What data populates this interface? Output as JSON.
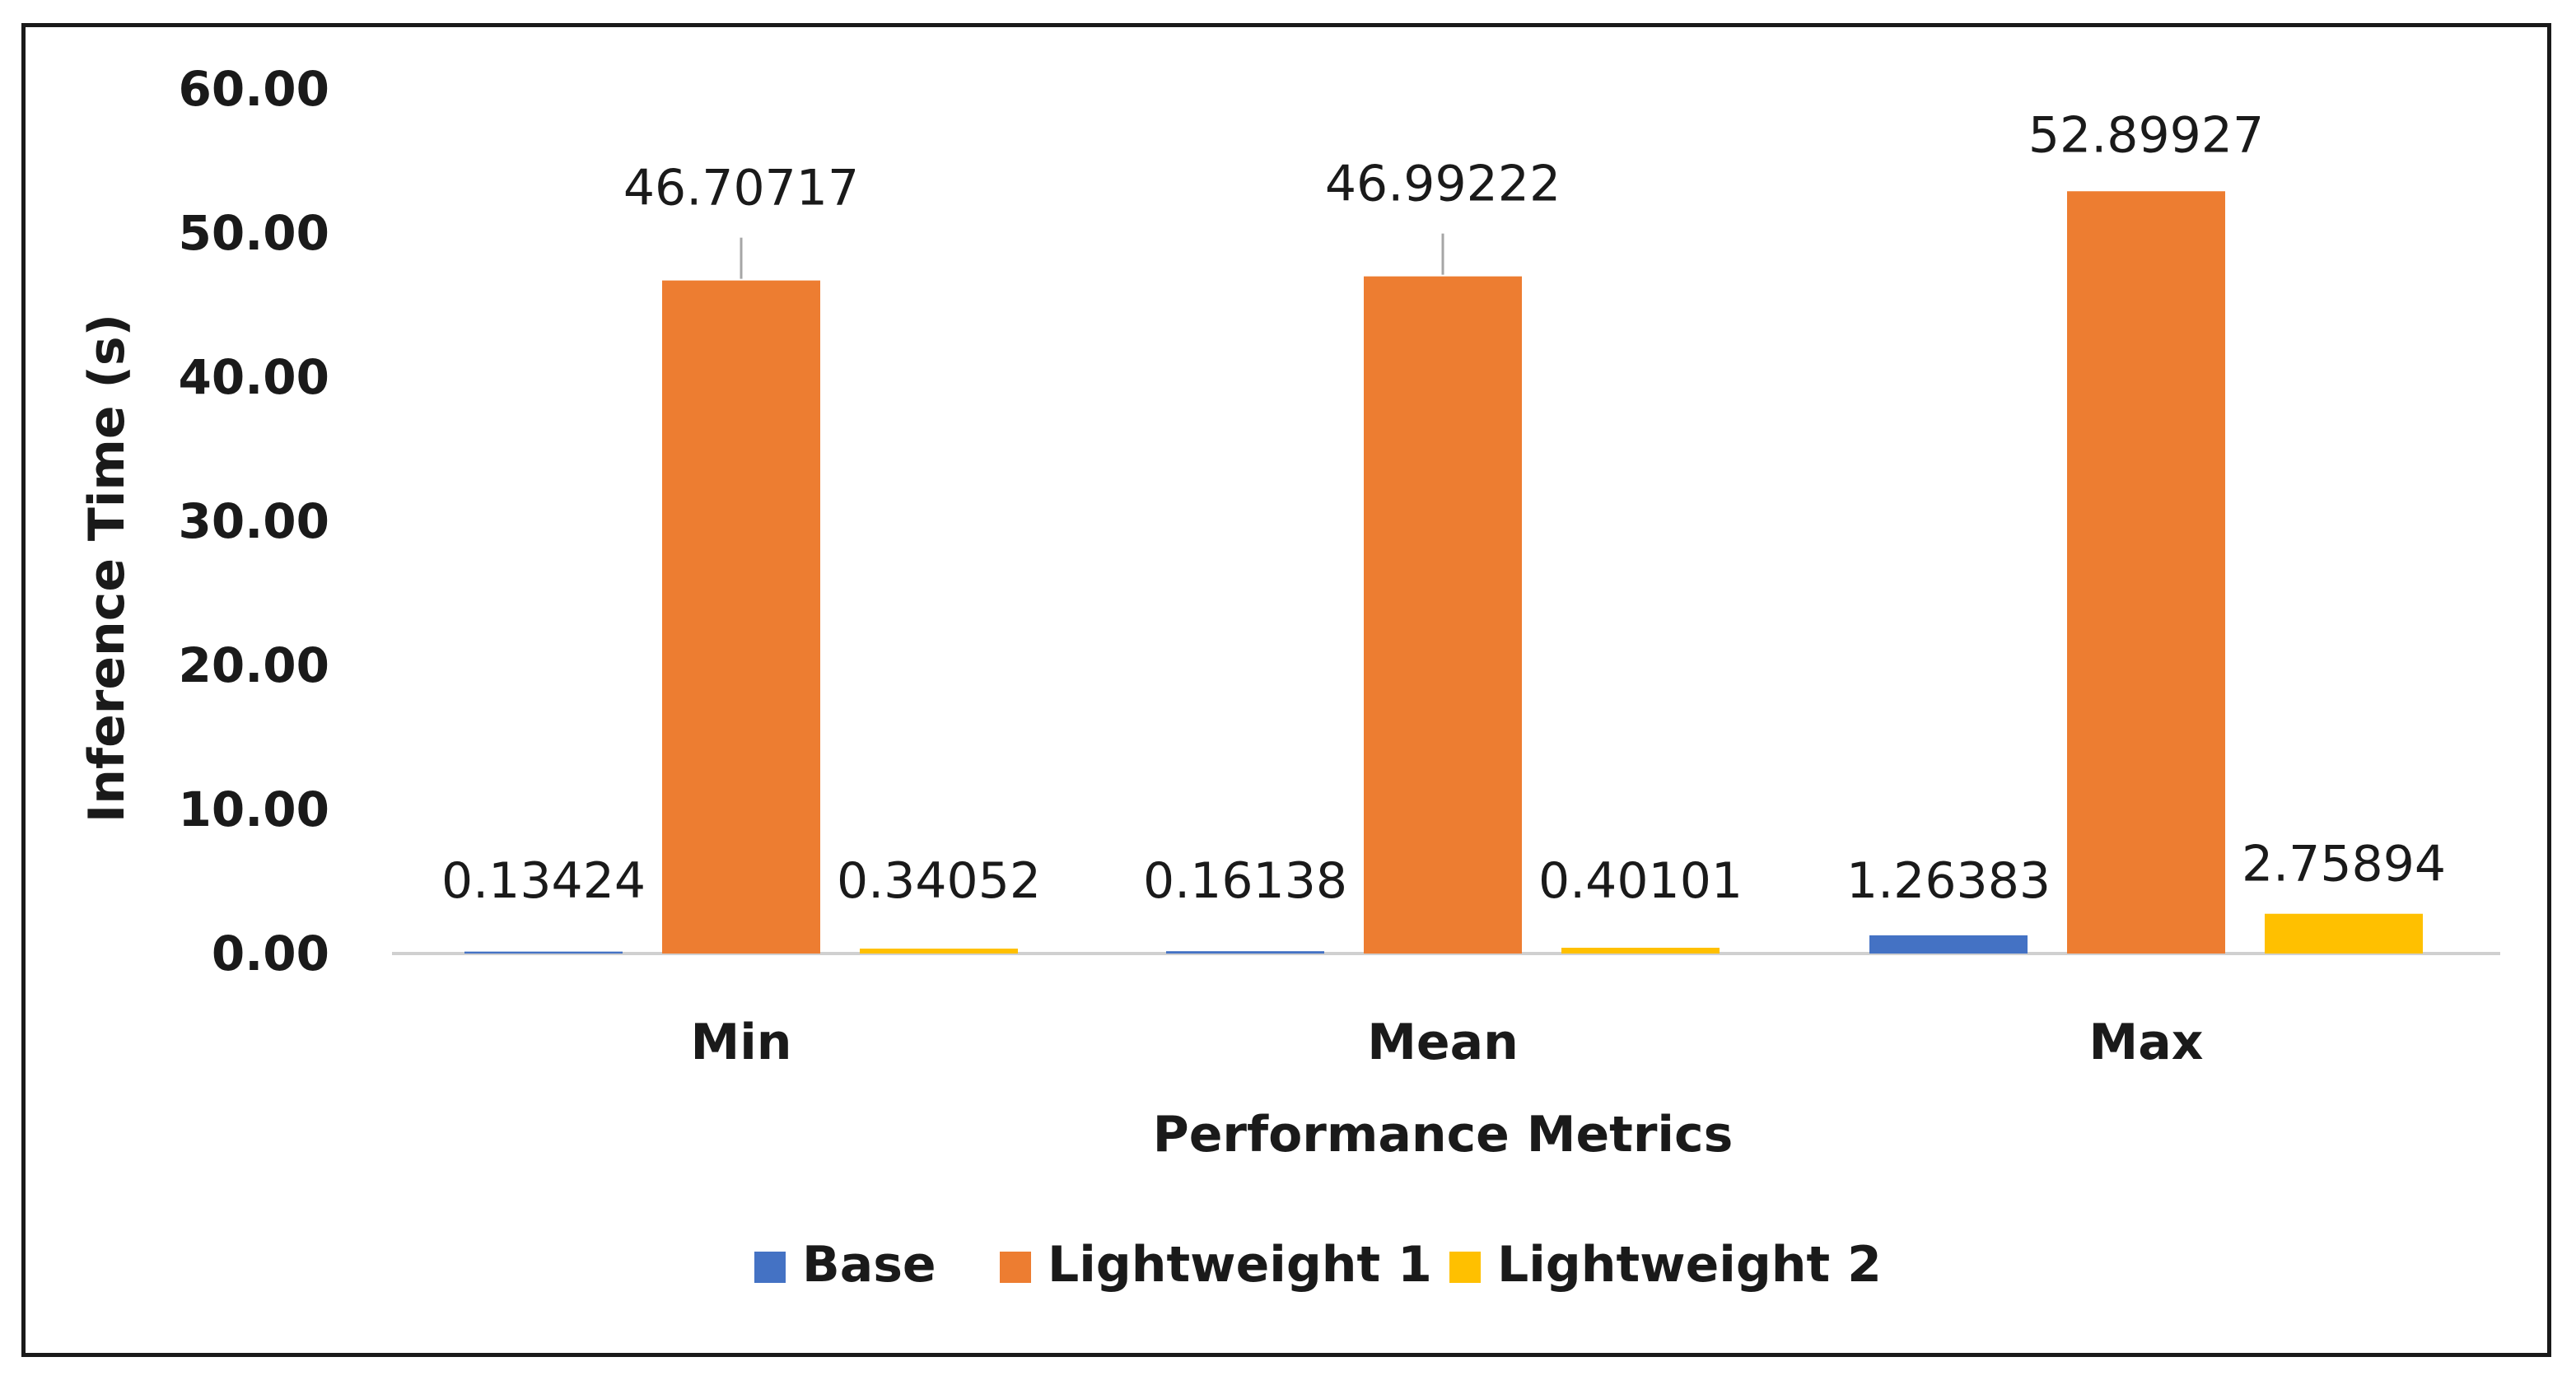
{
  "chart_data": {
    "type": "bar",
    "categories": [
      "Min",
      "Mean",
      "Max"
    ],
    "series": [
      {
        "name": "Base",
        "color": "#4472C4",
        "values": [
          0.13424,
          0.16138,
          1.26383
        ]
      },
      {
        "name": "Lightweight 1",
        "color": "#ED7D31",
        "values": [
          46.70717,
          46.99222,
          52.89927
        ]
      },
      {
        "name": "Lightweight 2",
        "color": "#FFC000",
        "values": [
          0.34052,
          0.40101,
          2.75894
        ]
      }
    ],
    "data_labels": [
      [
        "0.13424",
        "0.16138",
        "1.26383"
      ],
      [
        "46.70717",
        "46.99222",
        "52.89927"
      ],
      [
        "0.34052",
        "0.40101",
        "2.75894"
      ]
    ],
    "y_ticks": [
      "0.00",
      "10.00",
      "20.00",
      "30.00",
      "40.00",
      "50.00",
      "60.00"
    ],
    "ylim": [
      0,
      60
    ],
    "xlabel": "Performance Metrics",
    "ylabel": "Inference Time (s)",
    "legend_position": "bottom",
    "grid": false
  }
}
